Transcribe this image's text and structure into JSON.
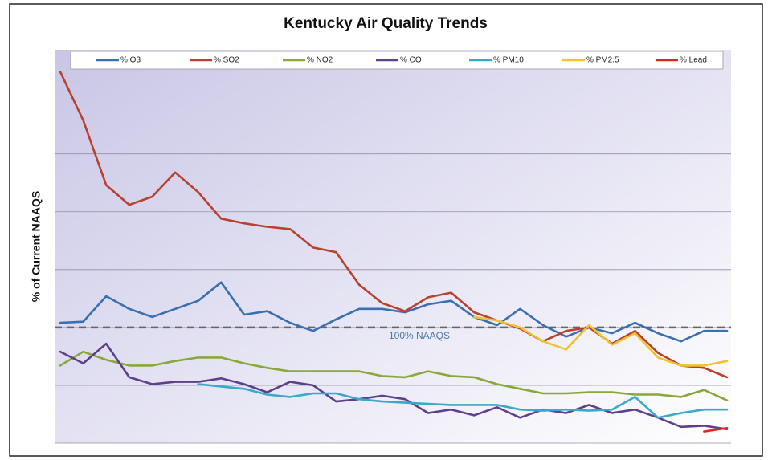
{
  "chart_data": {
    "type": "line",
    "title": "Kentucky Air Quality Trends",
    "y_label": "% of Current NAAQS",
    "categories": [
      null,
      null,
      null,
      null,
      null,
      null,
      null,
      null,
      null,
      null,
      null,
      null,
      null,
      null,
      null,
      null,
      null,
      null,
      null,
      null,
      null,
      null,
      null,
      null,
      null,
      null,
      null,
      null,
      null,
      null
    ],
    "ylim": [
      0,
      340
    ],
    "yticks": [
      0,
      50,
      100,
      150,
      200,
      250,
      300
    ],
    "grid": true,
    "legend": "top",
    "reference_line": {
      "value": 100,
      "label": "100% NAAQS",
      "color": "#666666"
    },
    "series": [
      {
        "name": "% O3",
        "color": "#3a6fb0",
        "values": [
          104,
          105,
          127,
          116,
          109,
          116,
          123,
          139,
          111,
          114,
          104,
          97,
          107,
          116,
          116,
          113,
          120,
          123,
          109,
          102,
          116,
          102,
          92,
          100,
          95,
          104,
          95,
          88,
          97,
          97
        ]
      },
      {
        "name": "% SO2",
        "color": "#b8412f",
        "values": [
          321,
          279,
          223,
          206,
          213,
          234,
          217,
          194,
          190,
          187,
          185,
          169,
          165,
          137,
          121,
          114,
          126,
          130,
          113,
          106,
          99,
          88,
          97,
          100,
          86,
          97,
          78,
          67,
          65,
          57
        ]
      },
      {
        "name": "% NO2",
        "color": "#8aa83a",
        "values": [
          67,
          79,
          72,
          67,
          67,
          71,
          74,
          74,
          69,
          65,
          62,
          62,
          62,
          62,
          58,
          57,
          62,
          58,
          57,
          51,
          47,
          43,
          43,
          44,
          44,
          42,
          42,
          40,
          46,
          37
        ]
      },
      {
        "name": "% CO",
        "color": "#5e3f8c",
        "values": [
          79,
          69,
          86,
          57,
          51,
          53,
          53,
          56,
          51,
          44,
          53,
          50,
          36,
          38,
          41,
          38,
          26,
          29,
          24,
          31,
          22,
          29,
          26,
          33,
          26,
          29,
          22,
          14,
          15,
          12
        ]
      },
      {
        "name": "% PM10",
        "color": "#3aa8c9",
        "values": [
          null,
          null,
          null,
          null,
          null,
          null,
          51,
          49,
          47,
          42,
          40,
          43,
          43,
          38,
          36,
          35,
          34,
          33,
          33,
          33,
          29,
          28,
          29,
          28,
          29,
          40,
          22,
          26,
          29,
          29
        ]
      },
      {
        "name": "% PM2.5",
        "color": "#f2c12e",
        "values": [
          null,
          null,
          null,
          null,
          null,
          null,
          null,
          null,
          null,
          null,
          null,
          null,
          null,
          null,
          null,
          null,
          null,
          null,
          109,
          106,
          100,
          88,
          81,
          102,
          85,
          95,
          74,
          67,
          67,
          71
        ]
      },
      {
        "name": "% Lead",
        "color": "#e0251f",
        "values": [
          null,
          null,
          null,
          null,
          null,
          null,
          null,
          null,
          null,
          null,
          null,
          null,
          null,
          null,
          null,
          null,
          null,
          null,
          null,
          null,
          null,
          null,
          null,
          null,
          null,
          null,
          null,
          null,
          10,
          13
        ]
      }
    ]
  }
}
